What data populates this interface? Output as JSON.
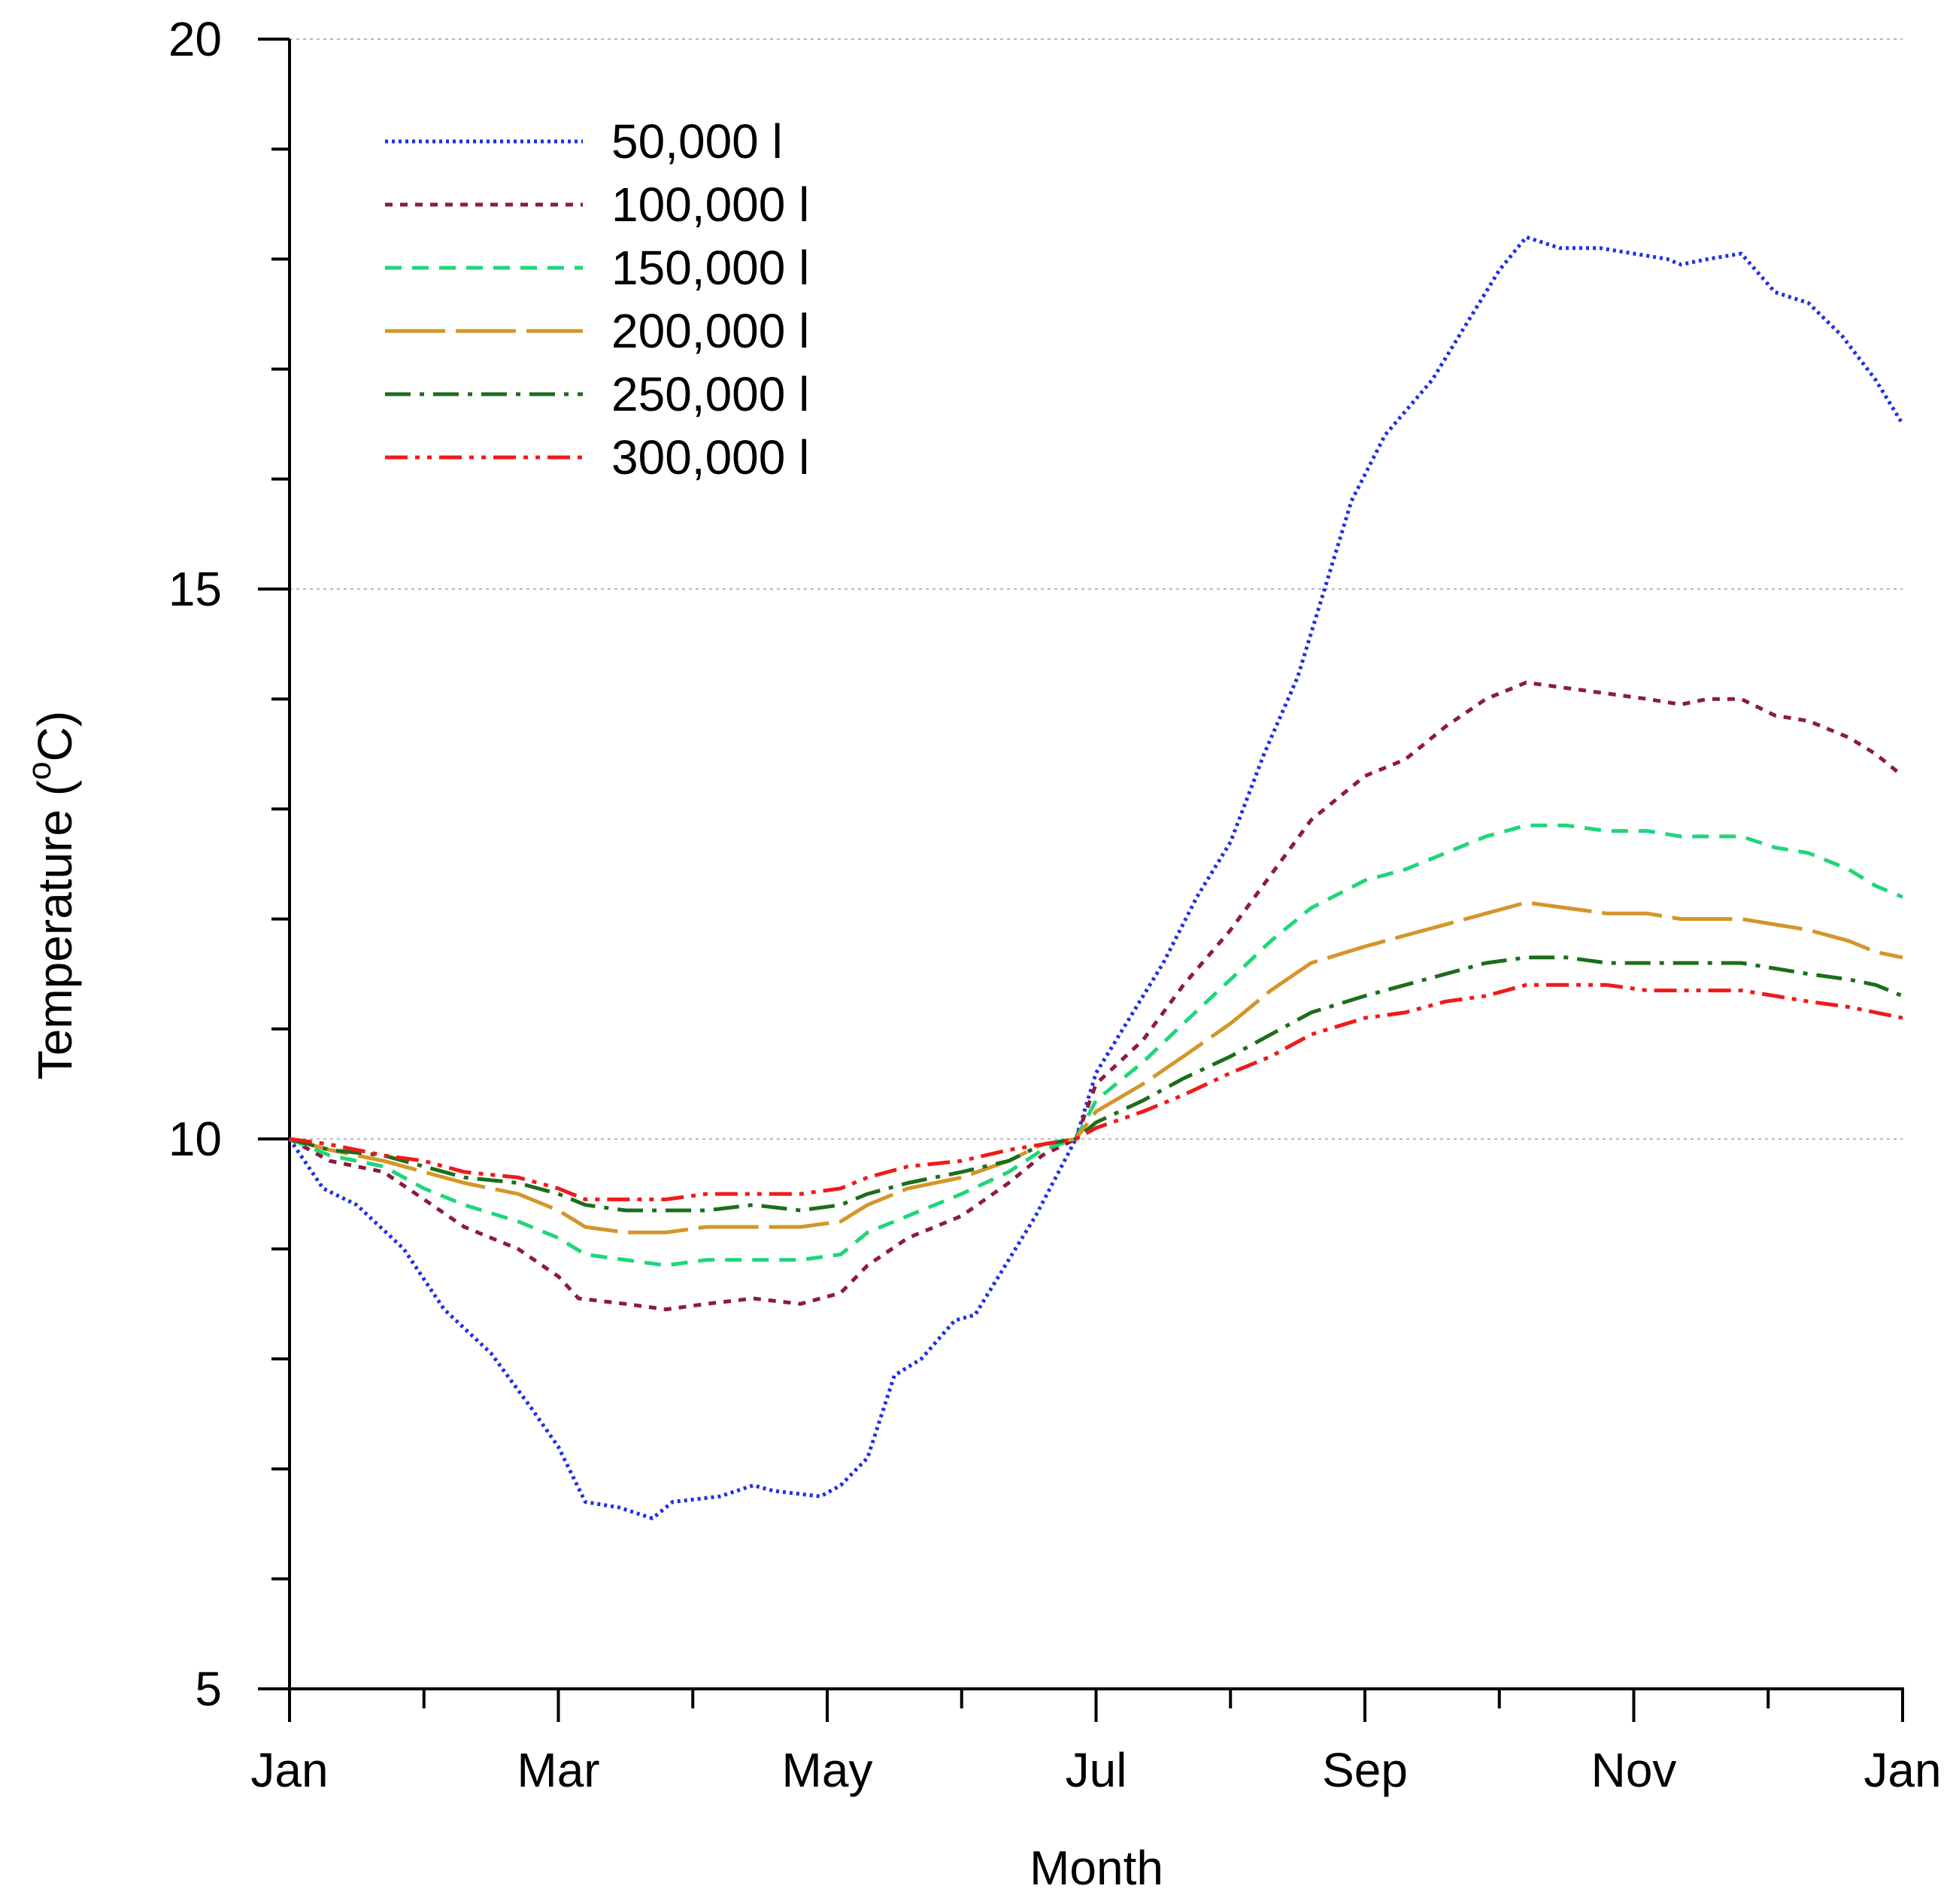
{
  "chart_data": {
    "type": "line",
    "title": "",
    "xlabel": "Month",
    "ylabel_main": "Temperature (",
    "ylabel_sup": "o",
    "ylabel_end": "C)",
    "ylim": [
      5,
      20
    ],
    "xlim": [
      1,
      13
    ],
    "grid": "horizontal dotted at major y ticks",
    "legend_position": "top-left",
    "x_ticks": [
      {
        "x": 1,
        "label": "Jan"
      },
      {
        "x": 2,
        "label": ""
      },
      {
        "x": 3,
        "label": "Mar"
      },
      {
        "x": 4,
        "label": ""
      },
      {
        "x": 5,
        "label": "May"
      },
      {
        "x": 6,
        "label": ""
      },
      {
        "x": 7,
        "label": "Jul"
      },
      {
        "x": 8,
        "label": ""
      },
      {
        "x": 9,
        "label": "Sep"
      },
      {
        "x": 10,
        "label": ""
      },
      {
        "x": 11,
        "label": "Nov"
      },
      {
        "x": 12,
        "label": ""
      },
      {
        "x": 13,
        "label": "Jan"
      }
    ],
    "y_major_ticks": [
      {
        "y": 5,
        "label": "5"
      },
      {
        "y": 10,
        "label": "10"
      },
      {
        "y": 15,
        "label": "15"
      },
      {
        "y": 20,
        "label": "20"
      }
    ],
    "y_minor_ticks": [
      6,
      7,
      8,
      9,
      11,
      12,
      13,
      14,
      16,
      17,
      18,
      19
    ],
    "series": [
      {
        "name": "50,000 l",
        "color": "#1f2fe6",
        "dash": "dotted",
        "points": [
          [
            1,
            10.0
          ],
          [
            1.25,
            9.55
          ],
          [
            1.5,
            9.4
          ],
          [
            1.85,
            9.0
          ],
          [
            2.15,
            8.45
          ],
          [
            2.5,
            8.05
          ],
          [
            2.8,
            7.55
          ],
          [
            3.0,
            7.2
          ],
          [
            3.2,
            6.7
          ],
          [
            3.45,
            6.65
          ],
          [
            3.7,
            6.55
          ],
          [
            3.85,
            6.7
          ],
          [
            4.2,
            6.75
          ],
          [
            4.45,
            6.85
          ],
          [
            4.6,
            6.8
          ],
          [
            4.95,
            6.75
          ],
          [
            5.1,
            6.85
          ],
          [
            5.3,
            7.1
          ],
          [
            5.5,
            7.85
          ],
          [
            5.7,
            8.0
          ],
          [
            5.95,
            8.35
          ],
          [
            6.1,
            8.4
          ],
          [
            6.35,
            8.9
          ],
          [
            6.55,
            9.3
          ],
          [
            6.85,
            10.0
          ],
          [
            7.0,
            10.6
          ],
          [
            7.3,
            11.2
          ],
          [
            7.5,
            11.6
          ],
          [
            7.75,
            12.2
          ],
          [
            8.0,
            12.7
          ],
          [
            8.25,
            13.5
          ],
          [
            8.5,
            14.2
          ],
          [
            8.7,
            15.0
          ],
          [
            8.9,
            15.8
          ],
          [
            9.15,
            16.4
          ],
          [
            9.5,
            16.9
          ],
          [
            9.75,
            17.4
          ],
          [
            10.0,
            17.9
          ],
          [
            10.2,
            18.2
          ],
          [
            10.45,
            18.1
          ],
          [
            10.75,
            18.1
          ],
          [
            11.0,
            18.05
          ],
          [
            11.25,
            18.0
          ],
          [
            11.35,
            17.95
          ],
          [
            11.55,
            18.0
          ],
          [
            11.8,
            18.05
          ],
          [
            12.05,
            17.7
          ],
          [
            12.3,
            17.6
          ],
          [
            12.55,
            17.3
          ],
          [
            12.8,
            16.9
          ],
          [
            13.0,
            16.5
          ]
        ]
      },
      {
        "name": "100,000 l",
        "color": "#8e1a40",
        "dash": "short-dash",
        "points": [
          [
            1,
            10.0
          ],
          [
            1.3,
            9.8
          ],
          [
            1.7,
            9.7
          ],
          [
            2.0,
            9.45
          ],
          [
            2.3,
            9.2
          ],
          [
            2.7,
            9.0
          ],
          [
            3.0,
            8.75
          ],
          [
            3.15,
            8.55
          ],
          [
            3.5,
            8.5
          ],
          [
            3.8,
            8.45
          ],
          [
            4.1,
            8.5
          ],
          [
            4.45,
            8.55
          ],
          [
            4.8,
            8.5
          ],
          [
            5.1,
            8.6
          ],
          [
            5.3,
            8.85
          ],
          [
            5.6,
            9.1
          ],
          [
            6.0,
            9.3
          ],
          [
            6.35,
            9.6
          ],
          [
            6.6,
            9.85
          ],
          [
            6.85,
            10.0
          ],
          [
            7.0,
            10.5
          ],
          [
            7.35,
            10.9
          ],
          [
            7.65,
            11.4
          ],
          [
            8.0,
            11.9
          ],
          [
            8.3,
            12.4
          ],
          [
            8.6,
            12.9
          ],
          [
            9.0,
            13.3
          ],
          [
            9.3,
            13.45
          ],
          [
            9.6,
            13.75
          ],
          [
            9.9,
            14.0
          ],
          [
            10.2,
            14.15
          ],
          [
            10.5,
            14.1
          ],
          [
            10.8,
            14.05
          ],
          [
            11.1,
            14.0
          ],
          [
            11.35,
            13.95
          ],
          [
            11.55,
            14.0
          ],
          [
            11.8,
            14.0
          ],
          [
            12.05,
            13.85
          ],
          [
            12.3,
            13.8
          ],
          [
            12.6,
            13.65
          ],
          [
            12.8,
            13.5
          ],
          [
            13.0,
            13.3
          ]
        ]
      },
      {
        "name": "150,000 l",
        "color": "#1fd67a",
        "dash": "dash",
        "points": [
          [
            1,
            10.0
          ],
          [
            1.3,
            9.85
          ],
          [
            1.7,
            9.75
          ],
          [
            2.0,
            9.55
          ],
          [
            2.3,
            9.4
          ],
          [
            2.7,
            9.25
          ],
          [
            3.0,
            9.1
          ],
          [
            3.2,
            8.95
          ],
          [
            3.5,
            8.9
          ],
          [
            3.8,
            8.85
          ],
          [
            4.1,
            8.9
          ],
          [
            4.45,
            8.9
          ],
          [
            4.8,
            8.9
          ],
          [
            5.1,
            8.95
          ],
          [
            5.3,
            9.15
          ],
          [
            5.6,
            9.3
          ],
          [
            6.0,
            9.5
          ],
          [
            6.35,
            9.7
          ],
          [
            6.6,
            9.9
          ],
          [
            6.85,
            10.0
          ],
          [
            7.0,
            10.35
          ],
          [
            7.35,
            10.7
          ],
          [
            7.65,
            11.05
          ],
          [
            8.0,
            11.45
          ],
          [
            8.3,
            11.8
          ],
          [
            8.6,
            12.1
          ],
          [
            9.0,
            12.35
          ],
          [
            9.3,
            12.45
          ],
          [
            9.6,
            12.6
          ],
          [
            9.9,
            12.75
          ],
          [
            10.2,
            12.85
          ],
          [
            10.5,
            12.85
          ],
          [
            10.8,
            12.8
          ],
          [
            11.1,
            12.8
          ],
          [
            11.35,
            12.75
          ],
          [
            11.55,
            12.75
          ],
          [
            11.8,
            12.75
          ],
          [
            12.05,
            12.65
          ],
          [
            12.3,
            12.6
          ],
          [
            12.6,
            12.45
          ],
          [
            12.8,
            12.3
          ],
          [
            13.0,
            12.2
          ]
        ]
      },
      {
        "name": "200,000 l",
        "color": "#d4952a",
        "dash": "long-dash",
        "points": [
          [
            1,
            10.0
          ],
          [
            1.3,
            9.9
          ],
          [
            1.7,
            9.8
          ],
          [
            2.0,
            9.7
          ],
          [
            2.3,
            9.6
          ],
          [
            2.7,
            9.5
          ],
          [
            3.0,
            9.35
          ],
          [
            3.2,
            9.2
          ],
          [
            3.5,
            9.15
          ],
          [
            3.8,
            9.15
          ],
          [
            4.1,
            9.2
          ],
          [
            4.45,
            9.2
          ],
          [
            4.8,
            9.2
          ],
          [
            5.1,
            9.25
          ],
          [
            5.3,
            9.4
          ],
          [
            5.6,
            9.55
          ],
          [
            6.0,
            9.65
          ],
          [
            6.35,
            9.8
          ],
          [
            6.6,
            9.95
          ],
          [
            6.85,
            10.0
          ],
          [
            7.0,
            10.25
          ],
          [
            7.35,
            10.5
          ],
          [
            7.65,
            10.75
          ],
          [
            8.0,
            11.05
          ],
          [
            8.3,
            11.35
          ],
          [
            8.6,
            11.6
          ],
          [
            9.0,
            11.75
          ],
          [
            9.3,
            11.85
          ],
          [
            9.6,
            11.95
          ],
          [
            9.9,
            12.05
          ],
          [
            10.2,
            12.15
          ],
          [
            10.5,
            12.1
          ],
          [
            10.8,
            12.05
          ],
          [
            11.1,
            12.05
          ],
          [
            11.35,
            12.0
          ],
          [
            11.55,
            12.0
          ],
          [
            11.8,
            12.0
          ],
          [
            12.05,
            11.95
          ],
          [
            12.3,
            11.9
          ],
          [
            12.6,
            11.8
          ],
          [
            12.8,
            11.7
          ],
          [
            13.0,
            11.65
          ]
        ]
      },
      {
        "name": "250,000 l",
        "color": "#1b6e1b",
        "dash": "dash-dot",
        "points": [
          [
            1,
            10.0
          ],
          [
            1.3,
            9.9
          ],
          [
            1.7,
            9.85
          ],
          [
            2.0,
            9.75
          ],
          [
            2.3,
            9.65
          ],
          [
            2.7,
            9.6
          ],
          [
            3.0,
            9.5
          ],
          [
            3.2,
            9.4
          ],
          [
            3.5,
            9.35
          ],
          [
            3.8,
            9.35
          ],
          [
            4.1,
            9.35
          ],
          [
            4.45,
            9.4
          ],
          [
            4.8,
            9.35
          ],
          [
            5.1,
            9.4
          ],
          [
            5.3,
            9.5
          ],
          [
            5.6,
            9.6
          ],
          [
            6.0,
            9.7
          ],
          [
            6.35,
            9.8
          ],
          [
            6.6,
            9.95
          ],
          [
            6.85,
            10.0
          ],
          [
            7.0,
            10.15
          ],
          [
            7.35,
            10.35
          ],
          [
            7.65,
            10.55
          ],
          [
            8.0,
            10.75
          ],
          [
            8.3,
            10.95
          ],
          [
            8.6,
            11.15
          ],
          [
            9.0,
            11.3
          ],
          [
            9.3,
            11.4
          ],
          [
            9.6,
            11.5
          ],
          [
            9.9,
            11.6
          ],
          [
            10.2,
            11.65
          ],
          [
            10.5,
            11.65
          ],
          [
            10.8,
            11.6
          ],
          [
            11.1,
            11.6
          ],
          [
            11.35,
            11.6
          ],
          [
            11.55,
            11.6
          ],
          [
            11.8,
            11.6
          ],
          [
            12.05,
            11.55
          ],
          [
            12.3,
            11.5
          ],
          [
            12.6,
            11.45
          ],
          [
            12.8,
            11.4
          ],
          [
            13.0,
            11.3
          ]
        ]
      },
      {
        "name": "300,000 l",
        "color": "#f01a1a",
        "dash": "dash-dot-dot",
        "points": [
          [
            1,
            10.0
          ],
          [
            1.3,
            9.95
          ],
          [
            1.7,
            9.85
          ],
          [
            2.0,
            9.8
          ],
          [
            2.3,
            9.7
          ],
          [
            2.7,
            9.65
          ],
          [
            3.0,
            9.55
          ],
          [
            3.2,
            9.45
          ],
          [
            3.5,
            9.45
          ],
          [
            3.8,
            9.45
          ],
          [
            4.1,
            9.5
          ],
          [
            4.45,
            9.5
          ],
          [
            4.8,
            9.5
          ],
          [
            5.1,
            9.55
          ],
          [
            5.3,
            9.65
          ],
          [
            5.6,
            9.75
          ],
          [
            6.0,
            9.8
          ],
          [
            6.35,
            9.9
          ],
          [
            6.6,
            9.95
          ],
          [
            6.85,
            10.0
          ],
          [
            7.0,
            10.1
          ],
          [
            7.35,
            10.25
          ],
          [
            7.65,
            10.4
          ],
          [
            8.0,
            10.6
          ],
          [
            8.3,
            10.75
          ],
          [
            8.6,
            10.95
          ],
          [
            9.0,
            11.1
          ],
          [
            9.3,
            11.15
          ],
          [
            9.6,
            11.25
          ],
          [
            9.9,
            11.3
          ],
          [
            10.2,
            11.4
          ],
          [
            10.5,
            11.4
          ],
          [
            10.8,
            11.4
          ],
          [
            11.1,
            11.35
          ],
          [
            11.35,
            11.35
          ],
          [
            11.55,
            11.35
          ],
          [
            11.8,
            11.35
          ],
          [
            12.05,
            11.3
          ],
          [
            12.3,
            11.25
          ],
          [
            12.6,
            11.2
          ],
          [
            12.8,
            11.15
          ],
          [
            13.0,
            11.1
          ]
        ]
      }
    ]
  }
}
